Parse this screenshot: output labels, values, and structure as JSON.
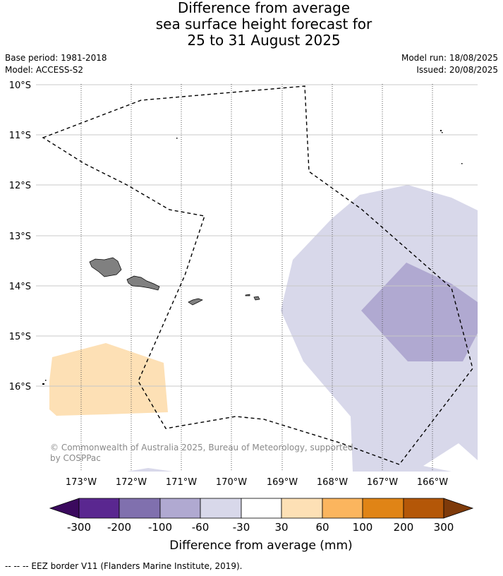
{
  "title": {
    "line1": "Difference from average",
    "line2": "sea surface height forecast for",
    "line3": "25 to 31 August 2025"
  },
  "meta": {
    "base_period": "Base period: 1981-2018",
    "model": "Model: ACCESS-S2",
    "model_run": "Model run: 18/08/2025",
    "issued": "Issued: 20/08/2025"
  },
  "map": {
    "lat_labels": [
      "10°S",
      "11°S",
      "12°S",
      "13°S",
      "14°S",
      "15°S",
      "16°S"
    ],
    "lon_labels": [
      "173°W",
      "172°W",
      "171°W",
      "170°W",
      "169°W",
      "168°W",
      "167°W",
      "166°W"
    ],
    "copyright_line1": "© Commonwealth of Australia 2025, Bureau of Meteorology, supported",
    "copyright_line2": "by COSPPac",
    "colors": {
      "land": "#808080",
      "anom_minus60_minus30": "#d8d8ea",
      "anom_minus100_minus60": "#b0a9d1",
      "anom_30_60": "#fde0b5"
    }
  },
  "colorbar": {
    "ticks": [
      "-300",
      "-200",
      "-100",
      "-60",
      "-30",
      "30",
      "60",
      "100",
      "200",
      "300"
    ],
    "colors": [
      "#3b0a5e",
      "#5a2790",
      "#8070ae",
      "#b0a9d1",
      "#d8d8ea",
      "#ffffff",
      "#fde0b5",
      "#fbb55e",
      "#e08416",
      "#b45708",
      "#7e3a0a"
    ],
    "label": "Difference from average (mm)"
  },
  "footnote": "--  --  -- EEZ border V11 (Flanders Marine Institute, 2019)."
}
